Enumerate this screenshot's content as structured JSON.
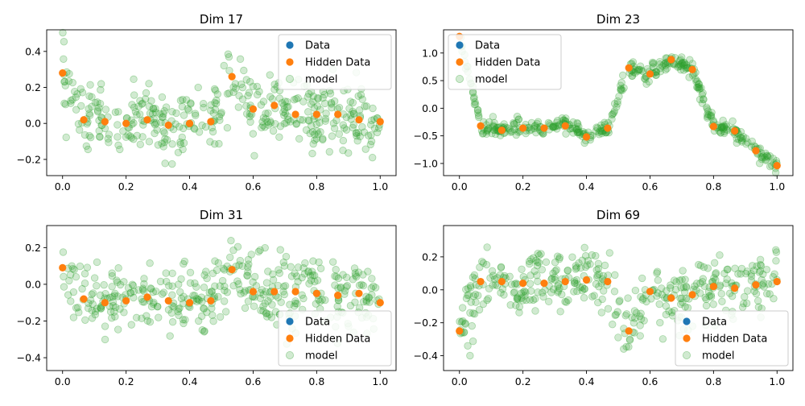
{
  "colors": {
    "data": "#1f77b4",
    "hidden": "#ff7f0e",
    "model": "#2ca02c",
    "axes": "#000000",
    "legend_border": "#cccccc"
  },
  "legend_labels": [
    "Data",
    "Hidden Data",
    "model"
  ],
  "chart_data": [
    {
      "type": "scatter",
      "title": "Dim 17",
      "xlim": [
        -0.05,
        1.05
      ],
      "ylim": [
        -0.29,
        0.52
      ],
      "xticks": [
        0.0,
        0.2,
        0.4,
        0.6,
        0.8,
        1.0
      ],
      "xtick_labels": [
        "0.0",
        "0.2",
        "0.4",
        "0.6",
        "0.8",
        "1.0"
      ],
      "yticks": [
        -0.2,
        0.0,
        0.2,
        0.4
      ],
      "ytick_labels": [
        "−0.2",
        "0.0",
        "0.2",
        "0.4"
      ],
      "legend": "top-right",
      "grid": false,
      "hidden_data": {
        "name": "Hidden Data",
        "x": [
          0.0,
          0.0667,
          0.1333,
          0.2,
          0.2667,
          0.3333,
          0.4,
          0.4667,
          0.5333,
          0.6,
          0.6667,
          0.7333,
          0.8,
          0.8667,
          0.9333,
          1.0
        ],
        "y": [
          0.28,
          0.02,
          0.01,
          0.0,
          0.02,
          -0.01,
          0.0,
          0.01,
          0.26,
          0.08,
          0.1,
          0.05,
          0.05,
          0.05,
          0.02,
          0.01
        ]
      },
      "model": {
        "name": "model",
        "samples": 400,
        "mean": [
          0.28,
          0.02,
          0.01,
          0.0,
          0.02,
          -0.01,
          0.0,
          0.01,
          0.26,
          0.08,
          0.1,
          0.05,
          0.05,
          0.05,
          0.02,
          0.01
        ],
        "spread": 0.09
      }
    },
    {
      "type": "scatter",
      "title": "Dim 23",
      "xlim": [
        -0.05,
        1.05
      ],
      "ylim": [
        -1.22,
        1.42
      ],
      "xticks": [
        0.0,
        0.2,
        0.4,
        0.6,
        0.8,
        1.0
      ],
      "xtick_labels": [
        "0.0",
        "0.2",
        "0.4",
        "0.6",
        "0.8",
        "1.0"
      ],
      "yticks": [
        -1.0,
        -0.5,
        0.0,
        0.5,
        1.0
      ],
      "ytick_labels": [
        "−1.0",
        "−0.5",
        "0.0",
        "0.5",
        "1.0"
      ],
      "legend": "top-left",
      "grid": false,
      "hidden_data": {
        "name": "Hidden Data",
        "x": [
          0.0,
          0.0667,
          0.1333,
          0.2,
          0.2667,
          0.3333,
          0.4,
          0.4667,
          0.5333,
          0.6,
          0.6667,
          0.7333,
          0.8,
          0.8667,
          0.9333,
          1.0
        ],
        "y": [
          1.3,
          -0.32,
          -0.4,
          -0.36,
          -0.36,
          -0.32,
          -0.52,
          -0.36,
          0.73,
          0.62,
          0.88,
          0.7,
          -0.33,
          -0.41,
          -0.77,
          -1.04
        ]
      },
      "model": {
        "name": "model",
        "samples": 420,
        "mean": [
          1.3,
          -0.32,
          -0.4,
          -0.36,
          -0.36,
          -0.32,
          -0.52,
          -0.36,
          0.73,
          0.62,
          0.88,
          0.7,
          -0.33,
          -0.41,
          -0.77,
          -1.04
        ],
        "spread": 0.07
      }
    },
    {
      "type": "scatter",
      "title": "Dim 31",
      "xlim": [
        -0.05,
        1.05
      ],
      "ylim": [
        -0.47,
        0.32
      ],
      "xticks": [
        0.0,
        0.2,
        0.4,
        0.6,
        0.8,
        1.0
      ],
      "xtick_labels": [
        "0.0",
        "0.2",
        "0.4",
        "0.6",
        "0.8",
        "1.0"
      ],
      "yticks": [
        -0.4,
        -0.2,
        0.0,
        0.2
      ],
      "ytick_labels": [
        "−0.4",
        "−0.2",
        "0.0",
        "0.2"
      ],
      "legend": "bottom-right",
      "grid": false,
      "hidden_data": {
        "name": "Hidden Data",
        "x": [
          0.0,
          0.0667,
          0.1333,
          0.2,
          0.2667,
          0.3333,
          0.4,
          0.4667,
          0.5333,
          0.6,
          0.6667,
          0.7333,
          0.8,
          0.8667,
          0.9333,
          1.0
        ],
        "y": [
          0.09,
          -0.08,
          -0.1,
          -0.09,
          -0.07,
          -0.09,
          -0.1,
          -0.09,
          0.08,
          -0.04,
          -0.04,
          -0.04,
          -0.05,
          -0.06,
          -0.05,
          -0.1
        ]
      },
      "model": {
        "name": "model",
        "samples": 400,
        "mean": [
          0.09,
          -0.08,
          -0.1,
          -0.09,
          -0.07,
          -0.09,
          -0.1,
          -0.09,
          0.08,
          -0.04,
          -0.04,
          -0.04,
          -0.05,
          -0.06,
          -0.05,
          -0.1
        ],
        "spread": 0.1
      }
    },
    {
      "type": "scatter",
      "title": "Dim 69",
      "xlim": [
        -0.05,
        1.05
      ],
      "ylim": [
        -0.49,
        0.39
      ],
      "xticks": [
        0.0,
        0.2,
        0.4,
        0.6,
        0.8,
        1.0
      ],
      "xtick_labels": [
        "0.0",
        "0.2",
        "0.4",
        "0.6",
        "0.8",
        "1.0"
      ],
      "yticks": [
        -0.4,
        -0.2,
        0.0,
        0.2
      ],
      "ytick_labels": [
        "−0.4",
        "−0.2",
        "0.0",
        "0.2"
      ],
      "legend": "bottom-right",
      "grid": false,
      "hidden_data": {
        "name": "Hidden Data",
        "x": [
          0.0,
          0.0667,
          0.1333,
          0.2,
          0.2667,
          0.3333,
          0.4,
          0.4667,
          0.5333,
          0.6,
          0.6667,
          0.7333,
          0.8,
          0.8667,
          0.9333,
          1.0
        ],
        "y": [
          -0.25,
          0.05,
          0.05,
          0.04,
          0.04,
          0.05,
          0.06,
          0.05,
          -0.25,
          -0.01,
          -0.05,
          -0.03,
          0.02,
          0.01,
          0.03,
          0.05
        ]
      },
      "model": {
        "name": "model",
        "samples": 400,
        "mean": [
          -0.25,
          0.05,
          0.05,
          0.04,
          0.04,
          0.05,
          0.06,
          0.05,
          -0.25,
          -0.01,
          -0.05,
          -0.03,
          0.02,
          0.01,
          0.03,
          0.05
        ],
        "spread": 0.09
      }
    }
  ]
}
